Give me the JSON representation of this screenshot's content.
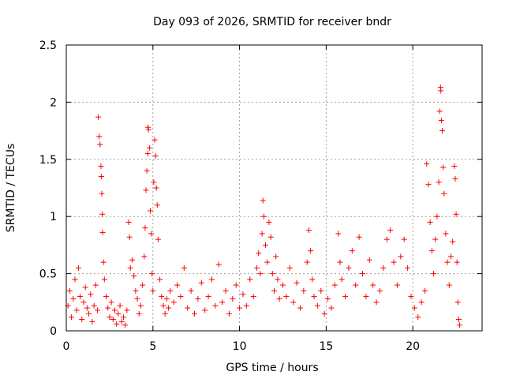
{
  "chart_data": {
    "type": "scatter",
    "title": "Day 093 of 2026, SRMTID for receiver bndr",
    "xlabel": "GPS time / hours",
    "ylabel": "SRMTID / TECUs",
    "xlim": [
      0,
      24
    ],
    "ylim": [
      0,
      2.5
    ],
    "xticks": [
      0,
      5,
      10,
      15,
      20
    ],
    "xtick_labels": [
      "0",
      "5",
      "10",
      "15",
      "20"
    ],
    "yticks": [
      0,
      0.5,
      1,
      1.5,
      2,
      2.5
    ],
    "ytick_labels": [
      "0",
      "0.5",
      "1",
      "1.5",
      "2",
      "2.5"
    ],
    "grid": true,
    "marker": "+",
    "color": "#ff0000",
    "series": [
      {
        "name": "SRMTID",
        "points": [
          [
            0.1,
            0.22
          ],
          [
            0.2,
            0.35
          ],
          [
            0.3,
            0.12
          ],
          [
            0.4,
            0.28
          ],
          [
            0.5,
            0.45
          ],
          [
            0.6,
            0.18
          ],
          [
            0.7,
            0.55
          ],
          [
            0.8,
            0.3
          ],
          [
            0.9,
            0.1
          ],
          [
            1.0,
            0.25
          ],
          [
            1.1,
            0.38
          ],
          [
            1.2,
            0.2
          ],
          [
            1.3,
            0.15
          ],
          [
            1.4,
            0.32
          ],
          [
            1.5,
            0.08
          ],
          [
            1.6,
            0.22
          ],
          [
            1.7,
            0.4
          ],
          [
            1.8,
            0.18
          ],
          [
            1.85,
            1.87
          ],
          [
            1.9,
            1.7
          ],
          [
            1.95,
            1.63
          ],
          [
            2.0,
            1.44
          ],
          [
            2.02,
            1.35
          ],
          [
            2.05,
            1.2
          ],
          [
            2.08,
            1.02
          ],
          [
            2.1,
            0.86
          ],
          [
            2.15,
            0.6
          ],
          [
            2.2,
            0.45
          ],
          [
            2.3,
            0.3
          ],
          [
            2.4,
            0.2
          ],
          [
            2.5,
            0.12
          ],
          [
            2.6,
            0.25
          ],
          [
            2.7,
            0.1
          ],
          [
            2.8,
            0.18
          ],
          [
            2.9,
            0.06
          ],
          [
            3.0,
            0.15
          ],
          [
            3.1,
            0.22
          ],
          [
            3.2,
            0.08
          ],
          [
            3.3,
            0.12
          ],
          [
            3.4,
            0.05
          ],
          [
            3.5,
            0.18
          ],
          [
            3.6,
            0.95
          ],
          [
            3.65,
            0.82
          ],
          [
            3.7,
            0.55
          ],
          [
            3.8,
            0.62
          ],
          [
            3.9,
            0.48
          ],
          [
            4.0,
            0.35
          ],
          [
            4.1,
            0.28
          ],
          [
            4.2,
            0.15
          ],
          [
            4.3,
            0.22
          ],
          [
            4.4,
            0.4
          ],
          [
            4.5,
            0.65
          ],
          [
            4.55,
            0.9
          ],
          [
            4.6,
            1.23
          ],
          [
            4.65,
            1.4
          ],
          [
            4.7,
            1.55
          ],
          [
            4.72,
            1.78
          ],
          [
            4.75,
            1.76
          ],
          [
            4.8,
            1.6
          ],
          [
            4.85,
            1.05
          ],
          [
            4.9,
            0.85
          ],
          [
            4.95,
            0.5
          ],
          [
            5.0,
            0.35
          ],
          [
            5.05,
            1.3
          ],
          [
            5.1,
            1.67
          ],
          [
            5.15,
            1.53
          ],
          [
            5.2,
            1.25
          ],
          [
            5.25,
            1.1
          ],
          [
            5.3,
            0.8
          ],
          [
            5.4,
            0.45
          ],
          [
            5.5,
            0.3
          ],
          [
            5.6,
            0.22
          ],
          [
            5.7,
            0.15
          ],
          [
            5.8,
            0.28
          ],
          [
            5.9,
            0.2
          ],
          [
            6.0,
            0.35
          ],
          [
            6.2,
            0.25
          ],
          [
            6.4,
            0.4
          ],
          [
            6.6,
            0.3
          ],
          [
            6.8,
            0.55
          ],
          [
            7.0,
            0.2
          ],
          [
            7.2,
            0.35
          ],
          [
            7.4,
            0.15
          ],
          [
            7.6,
            0.28
          ],
          [
            7.8,
            0.42
          ],
          [
            8.0,
            0.18
          ],
          [
            8.2,
            0.3
          ],
          [
            8.4,
            0.45
          ],
          [
            8.6,
            0.22
          ],
          [
            8.8,
            0.58
          ],
          [
            9.0,
            0.25
          ],
          [
            9.2,
            0.35
          ],
          [
            9.4,
            0.15
          ],
          [
            9.6,
            0.28
          ],
          [
            9.8,
            0.4
          ],
          [
            10.0,
            0.2
          ],
          [
            10.2,
            0.32
          ],
          [
            10.4,
            0.22
          ],
          [
            10.6,
            0.45
          ],
          [
            10.8,
            0.3
          ],
          [
            11.0,
            0.55
          ],
          [
            11.1,
            0.68
          ],
          [
            11.2,
            0.5
          ],
          [
            11.3,
            0.85
          ],
          [
            11.35,
            1.14
          ],
          [
            11.4,
            1.0
          ],
          [
            11.5,
            0.75
          ],
          [
            11.6,
            0.6
          ],
          [
            11.7,
            0.95
          ],
          [
            11.8,
            0.82
          ],
          [
            11.9,
            0.5
          ],
          [
            12.0,
            0.35
          ],
          [
            12.1,
            0.65
          ],
          [
            12.2,
            0.45
          ],
          [
            12.3,
            0.28
          ],
          [
            12.5,
            0.4
          ],
          [
            12.7,
            0.3
          ],
          [
            12.9,
            0.55
          ],
          [
            13.1,
            0.25
          ],
          [
            13.3,
            0.42
          ],
          [
            13.5,
            0.2
          ],
          [
            13.7,
            0.35
          ],
          [
            13.9,
            0.6
          ],
          [
            14.0,
            0.88
          ],
          [
            14.1,
            0.7
          ],
          [
            14.2,
            0.45
          ],
          [
            14.3,
            0.3
          ],
          [
            14.5,
            0.22
          ],
          [
            14.7,
            0.35
          ],
          [
            14.9,
            0.15
          ],
          [
            15.1,
            0.28
          ],
          [
            15.3,
            0.2
          ],
          [
            15.5,
            0.4
          ],
          [
            15.7,
            0.85
          ],
          [
            15.8,
            0.6
          ],
          [
            15.9,
            0.45
          ],
          [
            16.1,
            0.3
          ],
          [
            16.3,
            0.55
          ],
          [
            16.5,
            0.7
          ],
          [
            16.7,
            0.4
          ],
          [
            16.9,
            0.82
          ],
          [
            17.1,
            0.5
          ],
          [
            17.3,
            0.3
          ],
          [
            17.5,
            0.62
          ],
          [
            17.7,
            0.4
          ],
          [
            17.9,
            0.25
          ],
          [
            18.1,
            0.35
          ],
          [
            18.3,
            0.55
          ],
          [
            18.5,
            0.8
          ],
          [
            18.7,
            0.88
          ],
          [
            18.9,
            0.6
          ],
          [
            19.1,
            0.4
          ],
          [
            19.3,
            0.65
          ],
          [
            19.5,
            0.8
          ],
          [
            19.7,
            0.55
          ],
          [
            19.9,
            0.3
          ],
          [
            20.1,
            0.2
          ],
          [
            20.3,
            0.12
          ],
          [
            20.5,
            0.25
          ],
          [
            20.7,
            0.35
          ],
          [
            20.8,
            1.46
          ],
          [
            20.9,
            1.28
          ],
          [
            21.0,
            0.95
          ],
          [
            21.1,
            0.7
          ],
          [
            21.2,
            0.5
          ],
          [
            21.3,
            0.8
          ],
          [
            21.4,
            1.0
          ],
          [
            21.5,
            1.3
          ],
          [
            21.55,
            1.92
          ],
          [
            21.6,
            2.13
          ],
          [
            21.62,
            2.1
          ],
          [
            21.65,
            1.84
          ],
          [
            21.7,
            1.75
          ],
          [
            21.75,
            1.43
          ],
          [
            21.8,
            1.2
          ],
          [
            21.9,
            0.85
          ],
          [
            22.0,
            0.6
          ],
          [
            22.1,
            0.4
          ],
          [
            22.2,
            0.65
          ],
          [
            22.3,
            0.78
          ],
          [
            22.4,
            1.44
          ],
          [
            22.45,
            1.33
          ],
          [
            22.5,
            1.02
          ],
          [
            22.55,
            0.6
          ],
          [
            22.6,
            0.25
          ],
          [
            22.65,
            0.1
          ],
          [
            22.7,
            0.05
          ]
        ]
      }
    ]
  }
}
